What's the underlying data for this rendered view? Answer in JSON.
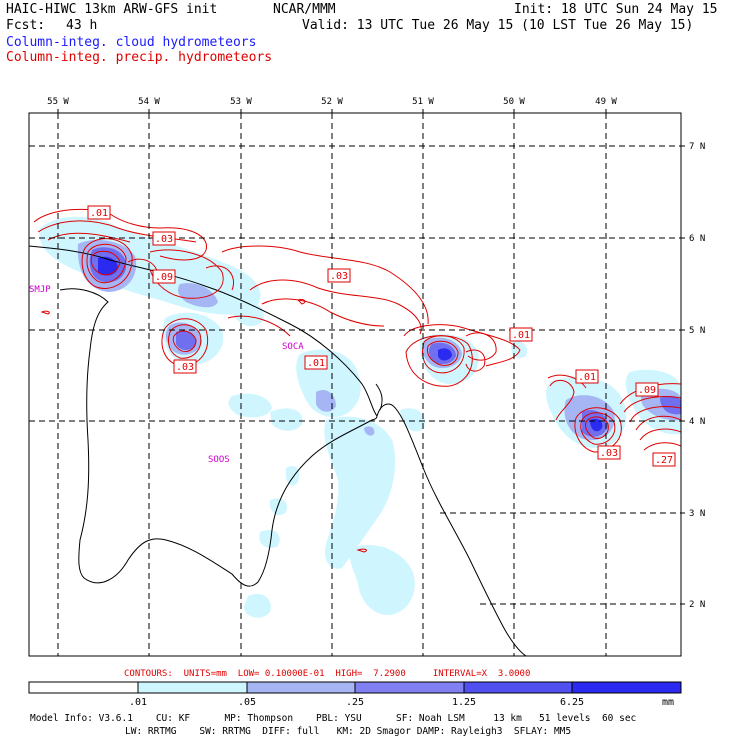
{
  "header": {
    "model": "HAIC-HIWC 13km ARW-GFS init",
    "org": "NCAR/MMM",
    "init": "Init: 18 UTC Sun 24 May 15",
    "fcst_label": "Fcst:",
    "fcst_value": "43 h",
    "valid": "Valid: 13 UTC Tue 26 May 15 (10 LST Tue 26 May 15)",
    "field_cloud": "Column-integ. cloud hydrometeors",
    "field_precip": "Column-integ. precip. hydrometeors"
  },
  "colors": {
    "cloud_text": "#1a1aff",
    "precip_text": "#e00000",
    "contour": "#e00000",
    "station": "#cc00cc",
    "fill_light": "#cff6ff",
    "fill_mid": "#a6b6f4",
    "fill_strong": "#6f6ff0",
    "fill_max": "#2a2af0"
  },
  "map": {
    "lon_labels": [
      "55 W",
      "54 W",
      "53 W",
      "52 W",
      "51 W",
      "50 W",
      "49 W"
    ],
    "lat_labels": [
      "7 N",
      "6 N",
      "5 N",
      "4 N",
      "3 N",
      "2 N"
    ],
    "stations": [
      "SMJP",
      "SOCA",
      "SOOS"
    ],
    "contour_labels": [
      ".01",
      ".03",
      ".09",
      ".03",
      ".03",
      ".01",
      ".01",
      ".01",
      ".09",
      ".03",
      ".27"
    ]
  },
  "contour_info": "CONTOURS:  UNITS=mm  LOW= 0.10000E-01  HIGH=  7.2900     INTERVAL=X  3.0000",
  "colorbar": {
    "ticks": [
      ".01",
      ".05",
      ".25",
      "1.25",
      "6.25"
    ],
    "units": "mm"
  },
  "model_info": {
    "line1": "Model Info: V3.6.1    CU: KF      MP: Thompson    PBL: YSU      SF: Noah LSM     13 km   51 levels  60 sec",
    "line2": "LW: RRTMG    SW: RRTMG  DIFF: full   KM: 2D Smagor DAMP: Rayleigh3  SFLAY: MM5"
  }
}
